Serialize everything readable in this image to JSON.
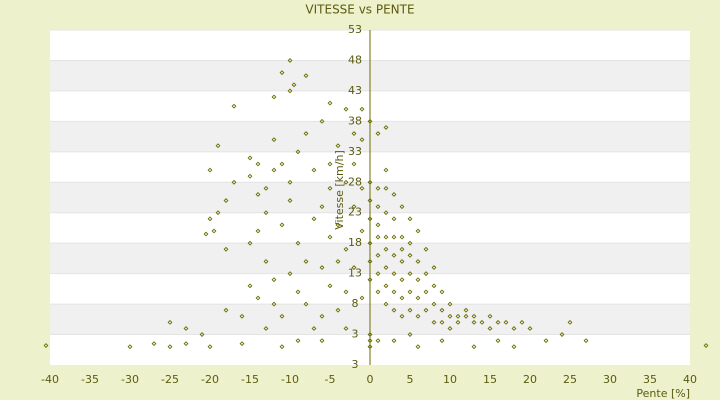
{
  "chart_data": {
    "type": "scatter",
    "title": "VITESSE vs PENTE",
    "x_label": "Pente [%]",
    "y_label": "Vitesse [km/h]",
    "color": "#6b6b00",
    "grid": true,
    "xlim": [
      -40,
      40
    ],
    "xticks": [
      -40,
      -35,
      -30,
      -25,
      -20,
      -15,
      -10,
      -5,
      0,
      5,
      10,
      15,
      20,
      25,
      30,
      35,
      40
    ],
    "ylim": [
      -2,
      53
    ],
    "yticks": [
      3,
      8,
      13,
      18,
      23,
      28,
      33,
      38,
      43,
      48,
      53
    ],
    "y_axis_bottom_label": "3",
    "x": [
      -20,
      -19.5,
      -20.5,
      -19,
      -18,
      -18,
      -17,
      -15,
      -15,
      -14,
      -13,
      -14,
      -15,
      -13,
      -12,
      -15,
      -14,
      -12,
      -16,
      -13,
      -18,
      -21,
      -25,
      -23,
      -13,
      -12,
      -11,
      -10,
      -9,
      -8,
      -7,
      -10,
      -11,
      -9,
      -8,
      -10,
      -9,
      -8,
      -11,
      -7,
      -6,
      -6,
      -5,
      -5,
      -4,
      -4,
      -3,
      -6,
      -5,
      -4,
      -3,
      -3,
      -2,
      -2,
      -1,
      -1,
      -2,
      -1,
      -2,
      -3,
      -1,
      0,
      0,
      0,
      0,
      0,
      0,
      0,
      0,
      0,
      1,
      1,
      1,
      1,
      1,
      1,
      1,
      1,
      2,
      2,
      2,
      2,
      2,
      2,
      2,
      2,
      2,
      3,
      3,
      3,
      3,
      3,
      3,
      3,
      4,
      4,
      4,
      4,
      4,
      4,
      4,
      5,
      5,
      5,
      5,
      5,
      5,
      5,
      6,
      6,
      6,
      6,
      6,
      7,
      7,
      7,
      7,
      8,
      8,
      8,
      8,
      9,
      9,
      9,
      10,
      10,
      10,
      11,
      11,
      12,
      12,
      13,
      13,
      14,
      15,
      15,
      16,
      17,
      18,
      19,
      20,
      22,
      24,
      25,
      27,
      16,
      13,
      18,
      -20,
      -19,
      -12,
      -6,
      -5,
      -7,
      -4,
      -3,
      -6,
      -9,
      -12,
      -14,
      1,
      3,
      9,
      6,
      -1,
      0,
      -40.5,
      42,
      -30,
      -27,
      -25,
      -23,
      -20,
      -16,
      -11,
      -10,
      -11,
      -8,
      -9.5,
      -10,
      -17,
      -5
    ],
    "values": [
      22,
      20,
      19.5,
      23,
      17,
      25,
      28,
      32,
      29,
      26,
      23,
      20,
      18,
      15,
      12,
      11,
      9,
      8,
      6,
      4,
      7,
      3,
      5,
      4,
      27,
      35,
      31,
      28,
      33,
      36,
      30,
      25,
      21,
      18,
      15,
      13,
      10,
      8,
      6,
      4,
      6,
      24,
      27,
      31,
      34,
      21,
      17,
      14,
      11,
      7,
      4,
      28,
      24,
      31,
      27,
      20,
      14,
      9,
      36,
      40,
      35,
      28,
      25,
      22,
      18,
      15,
      12,
      3,
      2,
      1,
      27,
      24,
      21,
      19,
      16,
      13,
      10,
      36,
      30,
      27,
      23,
      19,
      17,
      14,
      11,
      8,
      37,
      26,
      22,
      19,
      16,
      13,
      10,
      7,
      24,
      19,
      17,
      15,
      12,
      9,
      6,
      22,
      18,
      16,
      13,
      10,
      7,
      3,
      20,
      15,
      12,
      9,
      6,
      17,
      13,
      10,
      7,
      14,
      11,
      8,
      5,
      10,
      7,
      5,
      8,
      6,
      4,
      6,
      5,
      7,
      6,
      5,
      6,
      5,
      6,
      4,
      5,
      5,
      4,
      5,
      4,
      2,
      3,
      5,
      2,
      2,
      1,
      1,
      30,
      34,
      42,
      38,
      19,
      22,
      15,
      10,
      2,
      2,
      30,
      31,
      2,
      2,
      2,
      1,
      40,
      38,
      1.2,
      1.2,
      1,
      1.5,
      1,
      1.5,
      1,
      1.5,
      1,
      48,
      46,
      45.5,
      44,
      43,
      40.5,
      41
    ]
  }
}
